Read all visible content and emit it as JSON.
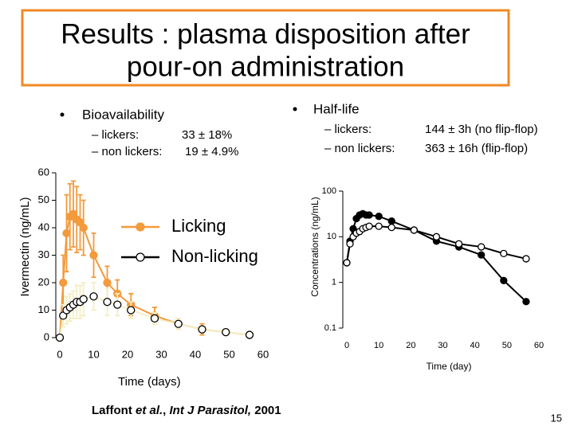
{
  "title": [
    "Results : plasma disposition after",
    "pour-on administration"
  ],
  "bullets": [
    {
      "heading": "Bioavailability",
      "items": [
        {
          "label": "– lickers:",
          "value": "33 ± 18%"
        },
        {
          "label": "– non lickers:",
          "value": "19 ± 4.9%"
        }
      ]
    },
    {
      "heading": "Half-life",
      "items": [
        {
          "label": "– lickers:",
          "value": "144 ± 3h (no flip-flop)"
        },
        {
          "label": "– non lickers:",
          "value": "363 ± 16h (flip-flop)"
        }
      ]
    }
  ],
  "chart_data": [
    {
      "type": "line",
      "xlabel": "Time (days)",
      "ylabel": "Ivermectin (ng/mL)",
      "xlim": [
        0,
        60
      ],
      "xticks": [
        0,
        10,
        20,
        30,
        40,
        50,
        60
      ],
      "ylim": [
        0,
        60
      ],
      "yticks": [
        0,
        10,
        20,
        30,
        40,
        50,
        60
      ],
      "x": [
        0,
        1,
        2,
        3,
        4,
        5,
        6,
        7,
        10,
        14,
        17,
        21,
        28,
        35,
        42,
        49,
        56
      ],
      "legend": "center",
      "series": [
        {
          "name": "Licking",
          "color": "#f39a3c",
          "edgecolor": "#f39a3c",
          "line_color": "#f39a3c",
          "values": [
            0,
            20,
            38,
            44,
            45,
            43,
            42,
            40,
            30,
            20,
            16,
            12,
            8,
            5,
            3,
            2,
            1
          ],
          "errors": [
            0,
            10,
            14,
            12,
            12,
            12,
            10,
            10,
            8,
            6,
            5,
            4,
            3,
            2,
            2,
            1,
            1
          ]
        },
        {
          "name": "Non-licking",
          "color": "#ffffff",
          "edgecolor": "#000000",
          "line_color": "#f3eec4",
          "values": [
            0,
            8,
            10,
            11,
            12,
            13,
            13,
            14,
            15,
            13,
            12,
            10,
            7,
            5,
            3,
            2,
            1
          ],
          "errors": [
            0,
            4,
            5,
            5,
            5,
            6,
            6,
            6,
            5,
            5,
            4,
            3,
            2,
            2,
            1,
            1,
            1
          ]
        }
      ]
    },
    {
      "type": "line",
      "xlabel": "Time (day)",
      "ylabel": "Concentrations (ng/mL)",
      "log_y": true,
      "xlim": [
        0,
        60
      ],
      "xticks": [
        0,
        10,
        20,
        30,
        40,
        50,
        60
      ],
      "ylim": [
        0.1,
        100
      ],
      "yticks": [
        0.1,
        1,
        10,
        100
      ],
      "x": [
        0,
        1,
        2,
        3,
        4,
        5,
        6,
        7,
        10,
        14,
        21,
        28,
        35,
        42,
        49,
        56
      ],
      "series": [
        {
          "name": "Licking",
          "color": "#000000",
          "edgecolor": "#000000",
          "line_color": "#000000",
          "values": [
            2.7,
            8,
            15,
            25,
            30,
            32,
            30,
            30,
            28,
            22,
            14,
            8,
            6,
            4,
            1.1,
            0.38
          ]
        },
        {
          "name": "Non-licking",
          "color": "#ffffff",
          "edgecolor": "#000000",
          "line_color": "#000000",
          "values": [
            2.7,
            7,
            10,
            12,
            13,
            15,
            16,
            17,
            17,
            16,
            14,
            10,
            7,
            6,
            4.3,
            3.3
          ]
        }
      ]
    }
  ],
  "citation": [
    "Laffont ",
    "et al.",
    ", ",
    "Int J Parasitol,",
    " 2001"
  ],
  "page_number": "15"
}
